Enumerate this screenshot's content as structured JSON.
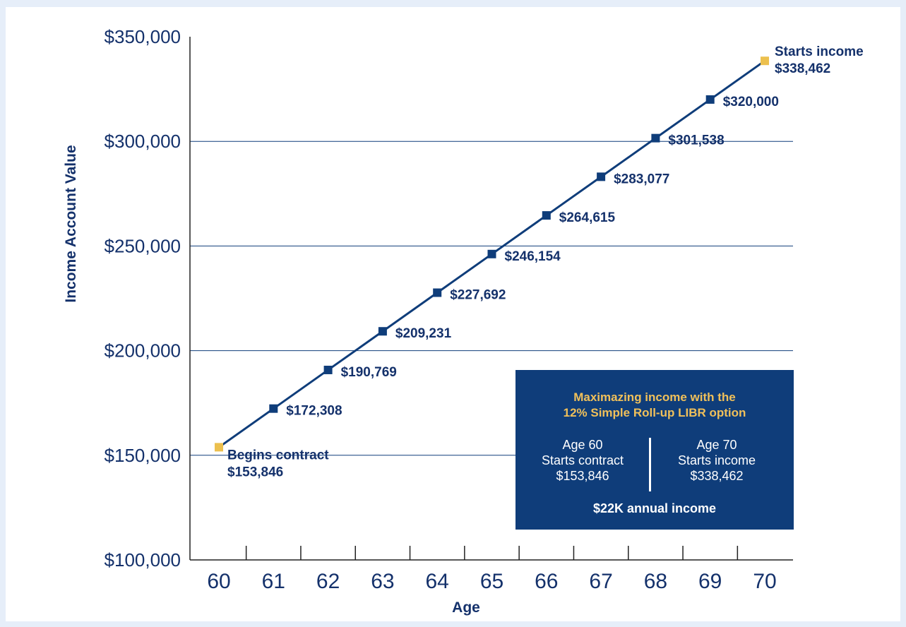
{
  "chart_data": {
    "type": "line",
    "xlabel": "Age",
    "ylabel": "Income Account Value",
    "x": [
      60,
      61,
      62,
      63,
      64,
      65,
      66,
      67,
      68,
      69,
      70
    ],
    "series": [
      {
        "values": [
          153846,
          172308,
          190769,
          209231,
          227692,
          246154,
          264615,
          283077,
          301538,
          320000,
          338462
        ],
        "color": "#0f3d7a",
        "endpoint_color": "#ecc04e"
      }
    ],
    "ylim": [
      100000,
      350000
    ],
    "yticks": [
      "$350,000",
      "$300,000",
      "$250,000",
      "$200,000",
      "$150,000",
      "$100,000"
    ],
    "ytick_values": [
      350000,
      300000,
      250000,
      200000,
      150000,
      100000
    ],
    "xticks": [
      "60",
      "61",
      "62",
      "63",
      "64",
      "65",
      "66",
      "67",
      "68",
      "69",
      "70"
    ],
    "data_labels": [
      "$153,846",
      "$172,308",
      "$190,769",
      "$209,231",
      "$227,692",
      "$246,154",
      "$264,615",
      "$283,077",
      "$301,538",
      "$320,000",
      "$338,462"
    ],
    "annotations": {
      "start_caption": "Begins contract",
      "end_caption": "Starts income"
    },
    "grid": "horizontal"
  },
  "callout": {
    "title_line1": "Maximazing income with the",
    "title_line2": "12% Simple Roll-up LIBR option",
    "left": {
      "line1": "Age 60",
      "line2": "Starts contract",
      "line3": "$153,846"
    },
    "right": {
      "line1": "Age 70",
      "line2": "Starts income",
      "line3": "$338,462"
    },
    "footer": "$22K annual income",
    "background": "#0f3d7a",
    "title_color": "#f0c05a"
  }
}
